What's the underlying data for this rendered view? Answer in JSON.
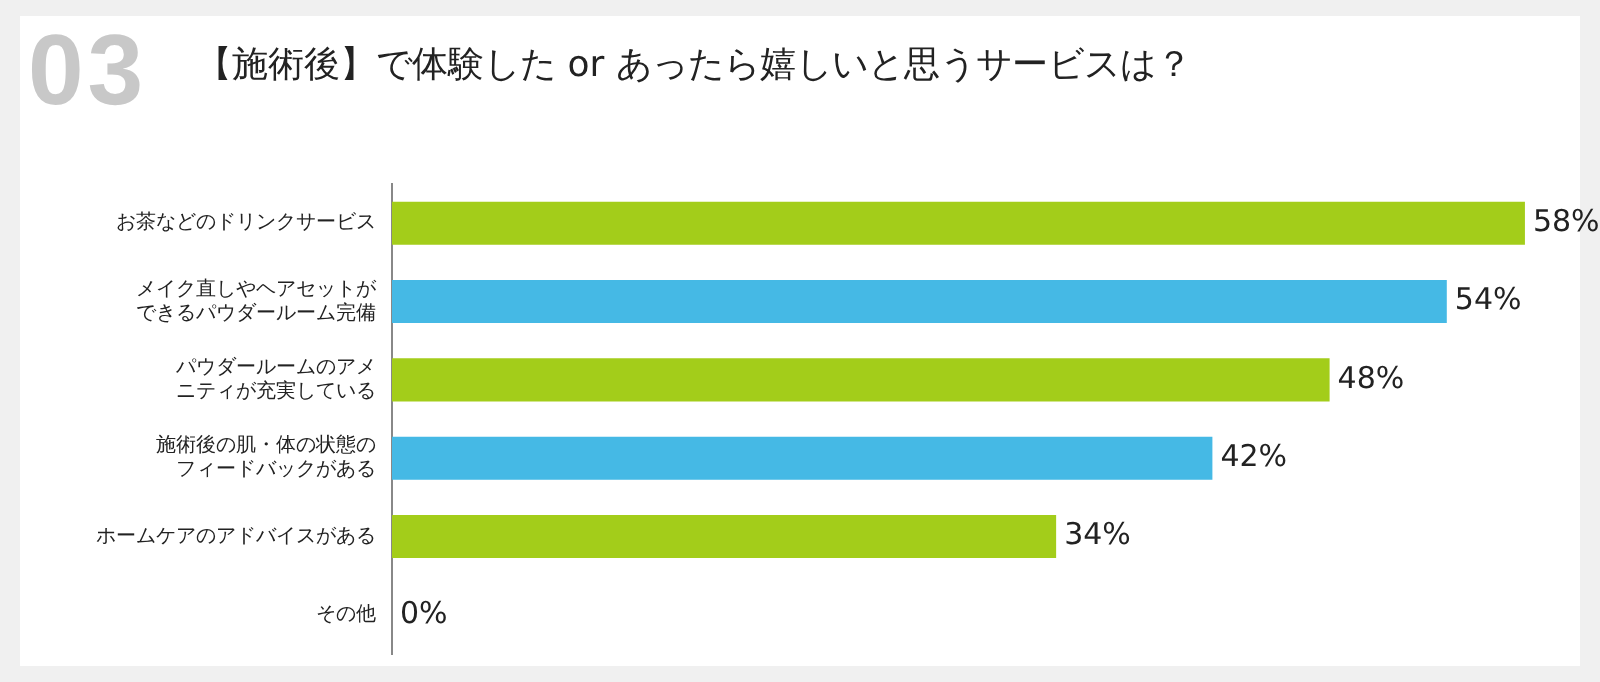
{
  "chart_data": {
    "type": "bar",
    "orientation": "horizontal",
    "title": "【施術後】で体験した or あったら嬉しいと思うサービスは？",
    "annotations": [
      "03"
    ],
    "categories": [
      "お茶などのドリンクサービス",
      "メイク直しやヘアセットができるパウダールーム完備",
      "パウダールームのアメニティが充実している",
      "施術後の肌・体の状態のフィードバックがある",
      "ホームケアのアドバイスがある",
      "その他"
    ],
    "values": [
      58,
      54,
      48,
      42,
      34,
      0
    ],
    "colors": [
      "#a3cd1a",
      "#45b9e5",
      "#a3cd1a",
      "#45b9e5",
      "#a3cd1a",
      "#a3cd1a"
    ],
    "value_labels": [
      "58%",
      "54%",
      "48%",
      "42%",
      "34%",
      "0%"
    ],
    "grid": false,
    "legend": false,
    "tick_labels": "y"
  }
}
